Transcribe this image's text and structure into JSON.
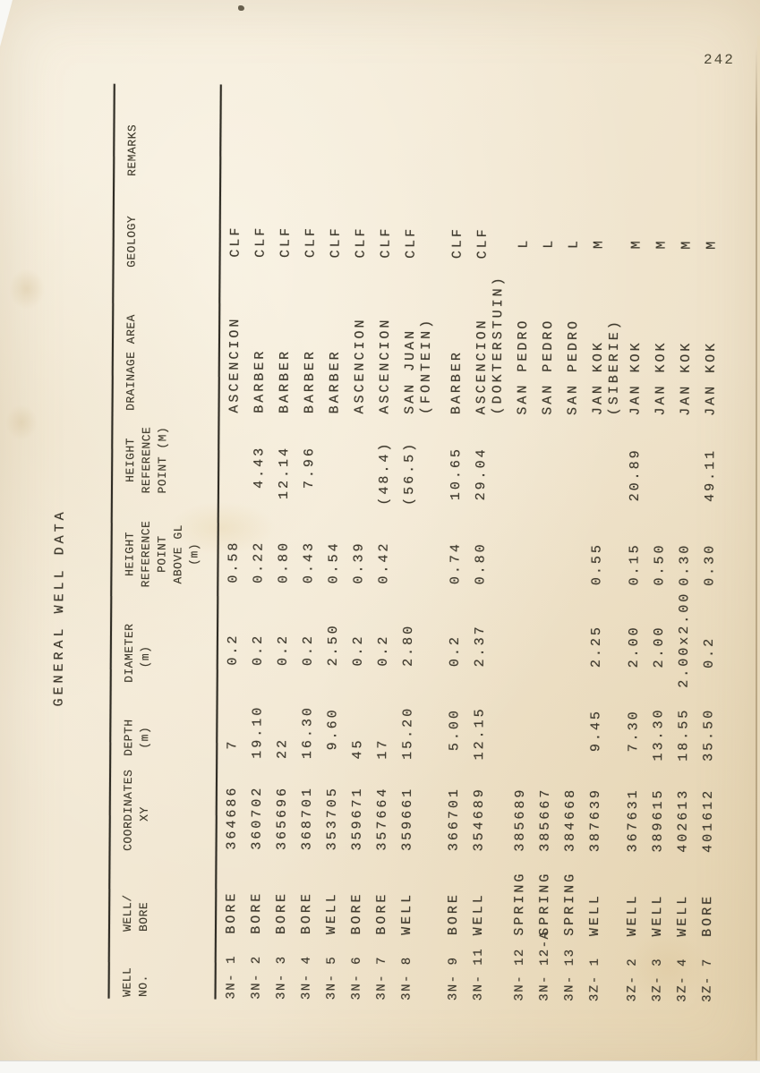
{
  "page": {
    "number": "242",
    "title": "GENERAL WELL DATA"
  },
  "colors": {
    "paper": "#f2e8d4",
    "ink": "#3f3a2e"
  },
  "table": {
    "headers": {
      "well_no": "WELL\nNO.",
      "well_bore": "WELL/\nBORE",
      "coordinates": "COORDINATES\n    XY",
      "depth": "DEPTH\n (m)",
      "diameter": "DIAMETER\n  (m)",
      "height_above_gl": "HEIGHT\nREFERENCE\nPOINT\nABOVE GL\n(m)",
      "height_ref_point": "HEIGHT\nREFERENCE\nPOINT (M)",
      "drainage_area": "DRAINAGE AREA",
      "geology": "GEOLOGY",
      "remarks": "REMARKS"
    },
    "rows": [
      {
        "no": "3N- 1",
        "type": "BORE",
        "xy": "364686",
        "depth": "7   ",
        "diam": "0.2 ",
        "hgl": "0.58",
        "href": "",
        "drain": "ASCENCION",
        "geo": "CLF",
        "rem": ""
      },
      {
        "no": "3N- 2",
        "type": "BORE",
        "xy": "360702",
        "depth": "19.10",
        "diam": "0.2 ",
        "hgl": "0.22",
        "href": "4.43",
        "drain": "BARBER",
        "geo": "CLF",
        "rem": ""
      },
      {
        "no": "3N- 3",
        "type": "BORE",
        "xy": "365696",
        "depth": "22   ",
        "diam": "0.2 ",
        "hgl": "0.80",
        "href": "12.14",
        "drain": "BARBER",
        "geo": "CLF",
        "rem": ""
      },
      {
        "no": "3N- 4",
        "type": "BORE",
        "xy": "368701",
        "depth": "16.30",
        "diam": "0.2 ",
        "hgl": "0.43",
        "href": "7.96",
        "drain": "BARBER",
        "geo": "CLF",
        "rem": ""
      },
      {
        "no": "3N- 5",
        "type": "WELL",
        "xy": "353705",
        "depth": "9.60",
        "diam": "2.50",
        "hgl": "0.54",
        "href": "",
        "drain": "BARBER",
        "geo": "CLF",
        "rem": ""
      },
      {
        "no": "3N- 6",
        "type": "BORE",
        "xy": "359671",
        "depth": "45   ",
        "diam": "0.2 ",
        "hgl": "0.39",
        "href": "",
        "drain": "ASCENCION",
        "geo": "CLF",
        "rem": ""
      },
      {
        "no": "3N- 7",
        "type": "BORE",
        "xy": "357664",
        "depth": "17   ",
        "diam": "0.2 ",
        "hgl": "0.42",
        "href": "(48.4)",
        "drain": "ASCENCION",
        "geo": "CLF",
        "rem": ""
      },
      {
        "no": "3N- 8",
        "type": "WELL",
        "xy": "359661",
        "depth": "15.20",
        "diam": "2.80",
        "hgl": "",
        "href": "(56.5)",
        "drain": "SAN JUAN\n(FONTEIN)",
        "geo": "CLF",
        "rem": ""
      },
      {
        "no": "3N- 9",
        "type": "BORE",
        "xy": "366701",
        "depth": "5.00",
        "diam": "0.2 ",
        "hgl": "0.74",
        "href": "10.65",
        "drain": "BARBER",
        "geo": "CLF",
        "rem": ""
      },
      {
        "no": "3N- 11",
        "type": "WELL",
        "xy": "354689",
        "depth": "12.15",
        "diam": "2.37",
        "hgl": "0.80",
        "href": "29.04",
        "drain": "ASCENCION\n(DOKTERSTUIN)",
        "geo": "CLF",
        "rem": ""
      },
      {
        "no": "3N- 12",
        "type": "SPRING",
        "xy": "385689",
        "depth": "",
        "diam": "",
        "hgl": "",
        "href": "",
        "drain": "SAN PEDRO",
        "geo": " L",
        "rem": ""
      },
      {
        "no": "3N- 12-A",
        "type": "SPRING",
        "xy": "385667",
        "depth": "",
        "diam": "",
        "hgl": "",
        "href": "",
        "drain": "SAN PEDRO",
        "geo": " L",
        "rem": ""
      },
      {
        "no": "3N- 13",
        "type": "SPRING",
        "xy": "384668",
        "depth": "",
        "diam": "",
        "hgl": "",
        "href": "",
        "drain": "SAN PEDRO",
        "geo": " L",
        "rem": ""
      },
      {
        "no": "3Z- 1",
        "type": "WELL",
        "xy": "387639",
        "depth": "9.45",
        "diam": "2.25",
        "hgl": "0.55",
        "href": "",
        "drain": "JAN KOK\n(SIBERIE)",
        "geo": " M",
        "rem": ""
      },
      {
        "no": "3Z- 2",
        "type": "WELL",
        "xy": "367631",
        "depth": "7.30",
        "diam": "2.00",
        "hgl": "0.15",
        "href": "20.89",
        "drain": "JAN KOK",
        "geo": " M",
        "rem": ""
      },
      {
        "no": "3Z- 3",
        "type": "WELL",
        "xy": "389615",
        "depth": "13.30",
        "diam": "2.00",
        "hgl": "0.50",
        "href": "",
        "drain": "JAN KOK",
        "geo": " M",
        "rem": ""
      },
      {
        "no": "3Z- 4",
        "type": "WELL",
        "xy": "402613",
        "depth": "18.55",
        "diam": "2.00x2.00",
        "hgl": "0.30",
        "href": "",
        "drain": "JAN KOK",
        "geo": " M",
        "rem": ""
      },
      {
        "no": "3Z- 7",
        "type": "BORE",
        "xy": "401612",
        "depth": "35.50",
        "diam": "0.2 ",
        "hgl": "0.30",
        "href": "49.11",
        "drain": "JAN KOK",
        "geo": " M",
        "rem": ""
      }
    ]
  }
}
